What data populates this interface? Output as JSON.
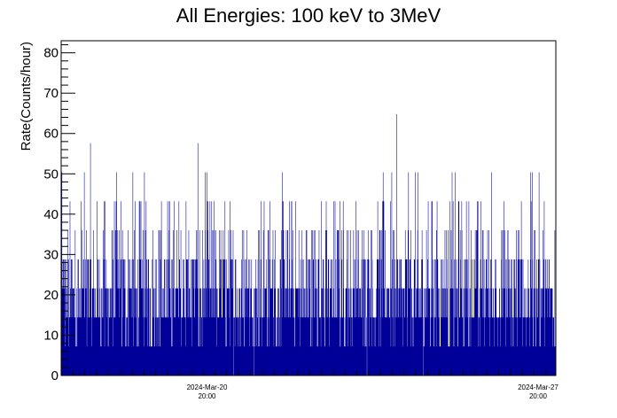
{
  "chart_data": {
    "type": "bar",
    "title": "All Energies:  100 keV to 3MeV",
    "ylabel": "Rate(Counts/hour)",
    "xlabel": "",
    "ylim": [
      0,
      83
    ],
    "y_ticks": [
      0,
      10,
      20,
      30,
      40,
      50,
      60,
      70,
      80
    ],
    "x_tick_labels": [
      {
        "date": "2024-Mar-20",
        "time": "20:00",
        "hours_from_start": 74
      },
      {
        "date": "2024-Mar-27",
        "time": "20:00",
        "hours_from_start": 242
      }
    ],
    "x_range_hours": [
      0,
      251
    ],
    "bin_width_hours": 0.125,
    "count_levels": [
      0,
      7.2,
      14.4,
      21.6,
      28.8,
      36,
      43.2,
      50.4,
      57.6,
      64.8
    ],
    "max_value": 64.8,
    "grid": false,
    "legend": "none",
    "series_color": "#000099"
  }
}
